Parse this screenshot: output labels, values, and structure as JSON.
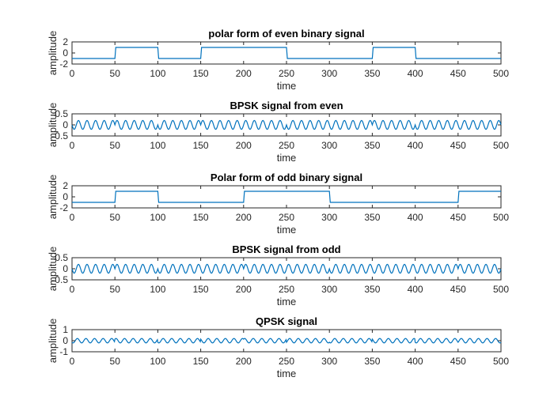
{
  "chart_data": [
    {
      "type": "line",
      "title": "polar form of even binary signal",
      "xlabel": "time",
      "ylabel": "amplitude",
      "xlim": [
        0,
        500
      ],
      "ylim": [
        -2,
        2
      ],
      "xticks": [
        "0",
        "50",
        "100",
        "150",
        "200",
        "250",
        "300",
        "350",
        "400",
        "450",
        "500"
      ],
      "yticks": [
        "-2",
        "0",
        "2"
      ],
      "signal": "polar",
      "bits": [
        -1,
        1,
        -1,
        1,
        1,
        -1,
        -1,
        1,
        -1,
        -1
      ],
      "bit_duration": 50,
      "grid": false
    },
    {
      "type": "line",
      "title": "BPSK signal from even",
      "xlabel": "time",
      "ylabel": "amplitude",
      "xlim": [
        0,
        500
      ],
      "ylim": [
        -0.5,
        0.5
      ],
      "xticks": [
        "0",
        "50",
        "100",
        "150",
        "200",
        "250",
        "300",
        "350",
        "400",
        "450",
        "500"
      ],
      "yticks": [
        "-0.5",
        "0",
        "0.5"
      ],
      "signal": "bpsk",
      "bits": [
        -1,
        1,
        -1,
        1,
        1,
        -1,
        -1,
        1,
        -1,
        -1
      ],
      "bit_duration": 50,
      "amplitude": 0.2,
      "period": 10,
      "grid": false
    },
    {
      "type": "line",
      "title": "Polar form of odd binary signal",
      "xlabel": "time",
      "ylabel": "amplitude",
      "xlim": [
        0,
        500
      ],
      "ylim": [
        -2,
        2
      ],
      "xticks": [
        "0",
        "50",
        "100",
        "150",
        "200",
        "250",
        "300",
        "350",
        "400",
        "450",
        "500"
      ],
      "yticks": [
        "-2",
        "0",
        "2"
      ],
      "signal": "polar",
      "bits": [
        -1,
        1,
        -1,
        -1,
        1,
        1,
        -1,
        -1,
        -1,
        1
      ],
      "bit_duration": 50,
      "grid": false
    },
    {
      "type": "line",
      "title": "BPSK signal from odd",
      "xlabel": "time",
      "ylabel": "amplitude",
      "xlim": [
        0,
        500
      ],
      "ylim": [
        -0.5,
        0.5
      ],
      "xticks": [
        "0",
        "50",
        "100",
        "150",
        "200",
        "250",
        "300",
        "350",
        "400",
        "450",
        "500"
      ],
      "yticks": [
        "-0.5",
        "0",
        "0.5"
      ],
      "signal": "bpsk",
      "bits": [
        -1,
        1,
        -1,
        -1,
        1,
        1,
        -1,
        -1,
        -1,
        1
      ],
      "bit_duration": 50,
      "amplitude": 0.2,
      "period": 10,
      "grid": false
    },
    {
      "type": "line",
      "title": "QPSK signal",
      "xlabel": "time",
      "ylabel": "amplitude",
      "xlim": [
        0,
        500
      ],
      "ylim": [
        -1,
        1
      ],
      "xticks": [
        "0",
        "50",
        "100",
        "150",
        "200",
        "250",
        "300",
        "350",
        "400",
        "450",
        "500"
      ],
      "yticks": [
        "-1",
        "0",
        "1"
      ],
      "signal": "qpsk",
      "bits_even": [
        -1,
        1,
        -1,
        1,
        1,
        -1,
        -1,
        1,
        -1,
        -1
      ],
      "bits_odd": [
        -1,
        1,
        -1,
        -1,
        1,
        1,
        -1,
        -1,
        -1,
        1
      ],
      "bit_duration": 50,
      "amplitude": 0.2,
      "period": 10,
      "grid": false
    }
  ],
  "colors": {
    "line": "#0072bd",
    "axes": "#262626"
  }
}
